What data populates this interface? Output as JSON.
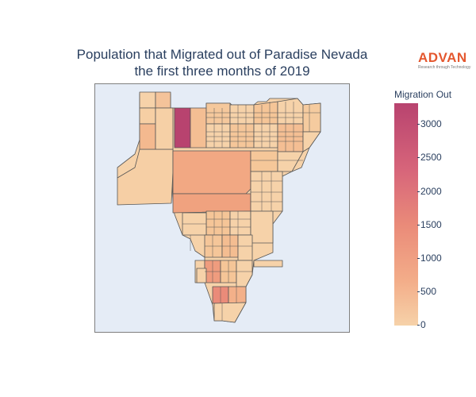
{
  "chart": {
    "title_line1": "Population that Migrated out of Paradise Nevada",
    "title_line2": "the first three months of 2019"
  },
  "logo": {
    "word": "ADVAN",
    "tagline": "Research through Technology",
    "color": "#e4572e"
  },
  "colorbar": {
    "title": "Migration Out",
    "ticks": [
      "3000",
      "2500",
      "2000",
      "1500",
      "1000",
      "500",
      "0"
    ],
    "range": [
      0,
      3300
    ],
    "colors": [
      "#f6d2a9",
      "#f3ad89",
      "#ea8b79",
      "#d7657a",
      "#b8436f"
    ]
  },
  "chart_data": {
    "type": "choropleth",
    "title": "Population that Migrated out of Paradise Nevada the first three months of 2019",
    "legend_title": "Migration Out",
    "color_range": [
      0,
      3300
    ],
    "region_values_approx": [
      3300,
      1200,
      1000,
      900,
      700,
      600,
      500,
      400,
      300,
      200,
      100
    ]
  }
}
